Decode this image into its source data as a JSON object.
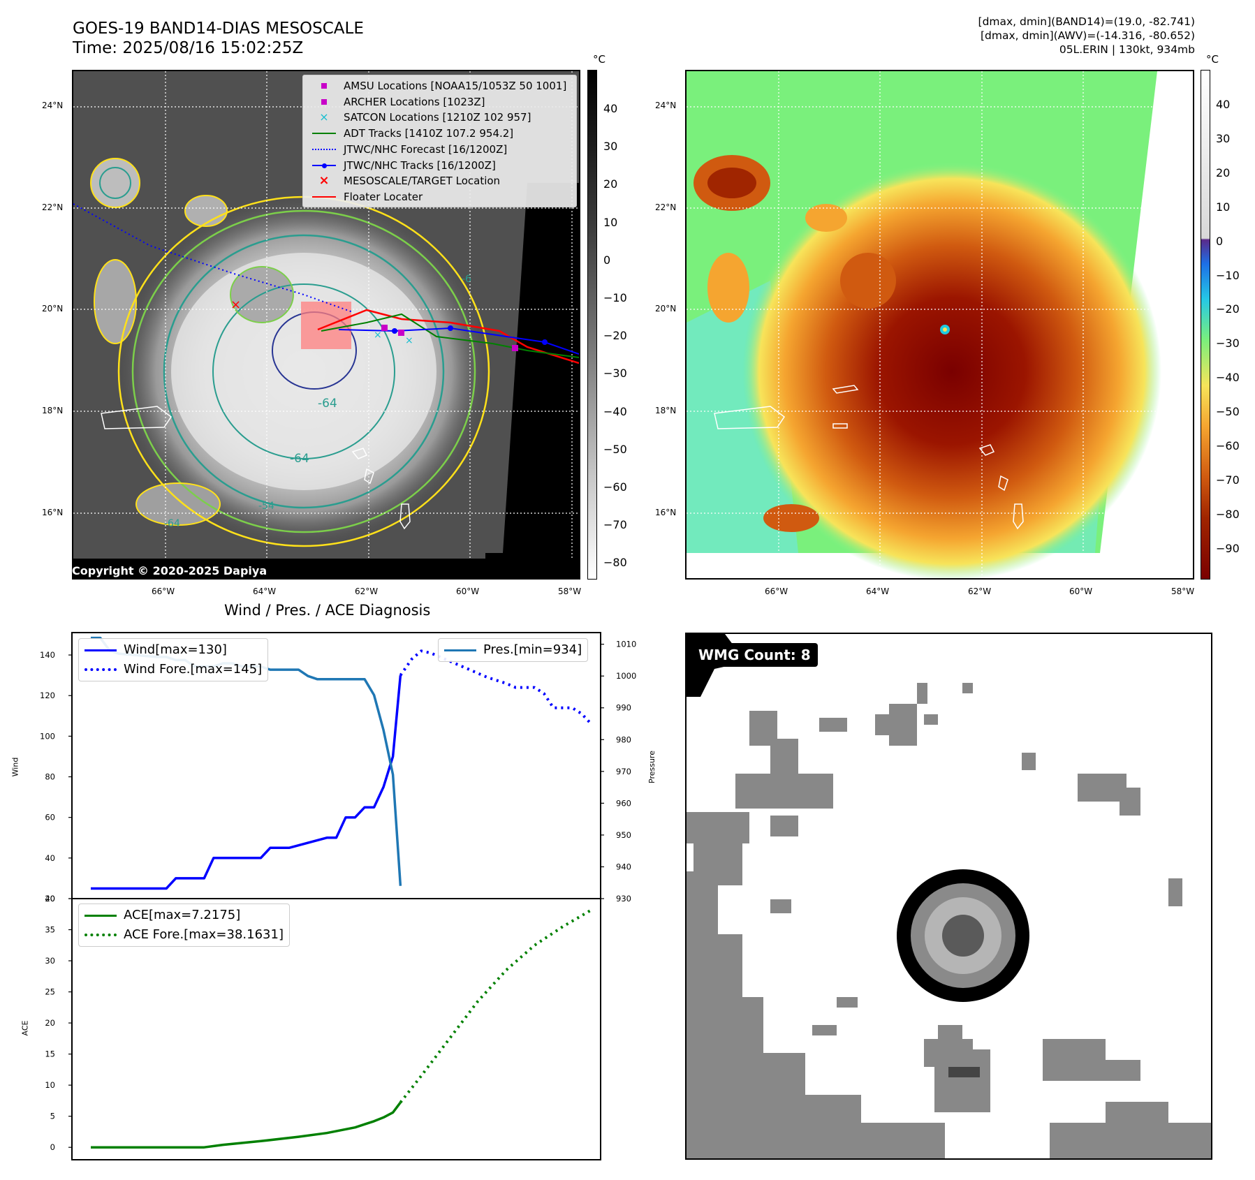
{
  "header": {
    "title_line1": "GOES-19 BAND14-DIAS MESOSCALE",
    "title_line2": "Time: 2025/08/16 15:02:25Z",
    "info_line1": "[dmax, dmin](BAND14)=(19.0, -82.741)",
    "info_line2": "[dmax, dmin](AWV)=(-14.316, -80.652)",
    "info_line3": "05L.ERIN | 130kt, 934mb"
  },
  "map": {
    "lat_labels": [
      "24°N",
      "22°N",
      "20°N",
      "18°N",
      "16°N"
    ],
    "lon_labels": [
      "66°W",
      "64°W",
      "62°W",
      "60°W",
      "58°W"
    ],
    "contour_labels": [
      "-64",
      "-64",
      "-54",
      "-64",
      "-6"
    ],
    "copyright": "Copyright © 2020-2025 Dapiya",
    "colors": {
      "contour_yellow": "#ffe11a",
      "contour_green": "#7ccf4a",
      "contour_teal": "#2a9d8f",
      "contour_navy": "#283593"
    },
    "legend": [
      {
        "label": "AMSU Locations [NOAA15/1053Z 50 1001]",
        "symbol": "square",
        "color": "#c800c8"
      },
      {
        "label": "ARCHER Locations [1023Z]",
        "symbol": "square",
        "color": "#c800c8"
      },
      {
        "label": "SATCON Locations [1210Z 102 957]",
        "symbol": "x",
        "color": "#17becf"
      },
      {
        "label": "ADT Tracks [1410Z 107.2 954.2]",
        "symbol": "line",
        "color": "#008000"
      },
      {
        "label": "JTWC/NHC Forecast [16/1200Z]",
        "symbol": "dotted",
        "color": "#0000ff"
      },
      {
        "label": "JTWC/NHC Tracks [16/1200Z]",
        "symbol": "line-dot",
        "color": "#0000ff"
      },
      {
        "label": "MESOSCALE/TARGET Location",
        "symbol": "x",
        "color": "#ff0000"
      },
      {
        "label": "Floater Locater",
        "symbol": "line",
        "color": "#ff0000"
      }
    ]
  },
  "colorbar_gray": {
    "unit": "°C",
    "labels": [
      "40",
      "30",
      "20",
      "10",
      "0",
      "−10",
      "−20",
      "−30",
      "−40",
      "−50",
      "−60",
      "−70",
      "−80"
    ]
  },
  "colorbar_color": {
    "unit": "°C",
    "labels": [
      "40",
      "30",
      "20",
      "10",
      "0",
      "−10",
      "−20",
      "−30",
      "−40",
      "−50",
      "−60",
      "−70",
      "−80",
      "−90"
    ]
  },
  "wmg": {
    "label": "WMG Count: 8"
  },
  "chart_data": [
    {
      "type": "line",
      "title": "Wind / Pres. / ACE Diagnosis",
      "ylabel": "Wind",
      "ylim": [
        20,
        150
      ],
      "yticks": [
        "140",
        "120",
        "100",
        "80",
        "60",
        "40",
        "20"
      ],
      "y2label": "Pressure",
      "y2lim": [
        930,
        1013
      ],
      "y2ticks": [
        "1010",
        "1000",
        "990",
        "980",
        "970",
        "960",
        "950",
        "940",
        "930"
      ],
      "series": [
        {
          "name": "Wind[max=130]",
          "axis": "left",
          "style": "solid",
          "color": "#0000ff",
          "x": [
            0,
            8,
            9,
            12,
            13,
            18,
            19,
            20,
            21,
            25,
            26,
            27,
            28,
            29,
            30,
            31,
            32,
            32.8
          ],
          "y": [
            25,
            25,
            30,
            30,
            40,
            40,
            45,
            45,
            45,
            50,
            50,
            60,
            60,
            65,
            65,
            75,
            90,
            130
          ]
        },
        {
          "name": "Wind Fore.[max=145]",
          "axis": "left",
          "style": "dotted",
          "color": "#0000ff",
          "x": [
            32.8,
            34,
            35,
            36,
            38,
            40,
            42,
            44,
            45,
            46,
            47,
            48,
            49,
            50,
            51,
            52,
            53
          ],
          "y": [
            130,
            138,
            142,
            141,
            137,
            133,
            129,
            126,
            124,
            124,
            124,
            121,
            114,
            114,
            114,
            111,
            106
          ]
        },
        {
          "name": "Pres.[min=934]",
          "axis": "right",
          "style": "solid",
          "color": "#1f77b4",
          "x": [
            0,
            1,
            2,
            3,
            7,
            8,
            9,
            10,
            11,
            12,
            13,
            14,
            15,
            16,
            18,
            19,
            20,
            21,
            22,
            23,
            24,
            25,
            26,
            29,
            30,
            31,
            32,
            32.8
          ],
          "y": [
            1012,
            1012,
            1008,
            1007,
            1006,
            1006,
            1005,
            1005,
            1003,
            1003,
            1003,
            1004,
            1004,
            1003,
            1003,
            1002,
            1002,
            1002,
            1002,
            1000,
            999,
            999,
            999,
            999,
            994,
            983,
            969,
            934
          ]
        }
      ]
    },
    {
      "type": "line",
      "ylabel": "ACE",
      "ylim": [
        -2,
        40
      ],
      "yticks": [
        "40",
        "35",
        "30",
        "25",
        "20",
        "15",
        "10",
        "5",
        "0"
      ],
      "series": [
        {
          "name": "ACE[max=7.2175]",
          "style": "solid",
          "color": "#008000",
          "x": [
            0,
            4,
            8,
            12,
            14,
            18,
            22,
            25,
            28,
            29,
            30,
            31,
            32,
            32.8
          ],
          "y": [
            0,
            0,
            0,
            0,
            0.4,
            1.0,
            1.7,
            2.3,
            3.2,
            3.7,
            4.2,
            4.8,
            5.6,
            7.2175
          ]
        },
        {
          "name": "ACE Fore.[max=38.1631]",
          "style": "dotted",
          "color": "#008000",
          "x": [
            32.8,
            35,
            38,
            41,
            44,
            47,
            50,
            53
          ],
          "y": [
            7.2175,
            11.5,
            17.5,
            23.5,
            28.5,
            32.5,
            35.5,
            38.1631
          ]
        }
      ]
    }
  ]
}
